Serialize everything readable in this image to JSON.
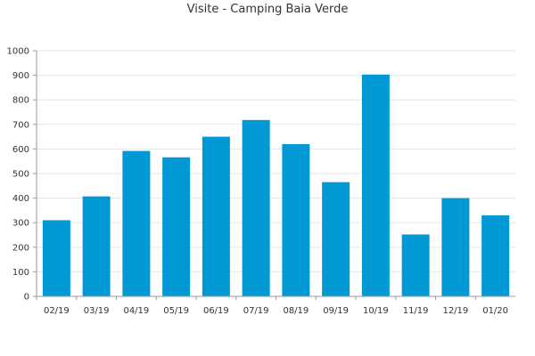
{
  "chart_data": {
    "type": "bar",
    "title": "Visite - Camping Baia Verde",
    "xlabel": "",
    "ylabel": "",
    "categories": [
      "02/19",
      "03/19",
      "04/19",
      "05/19",
      "06/19",
      "07/19",
      "08/19",
      "09/19",
      "10/19",
      "11/19",
      "12/19",
      "01/20"
    ],
    "values": [
      310,
      407,
      592,
      566,
      650,
      718,
      620,
      465,
      903,
      252,
      400,
      330
    ],
    "ylim": [
      0,
      1000
    ],
    "yticks": [
      0,
      100,
      200,
      300,
      400,
      500,
      600,
      700,
      800,
      900,
      1000
    ],
    "grid": true,
    "legend": "none",
    "bar_color": "#0099d6",
    "grid_color": "#e5e5e5",
    "axis_color": "#999999"
  }
}
